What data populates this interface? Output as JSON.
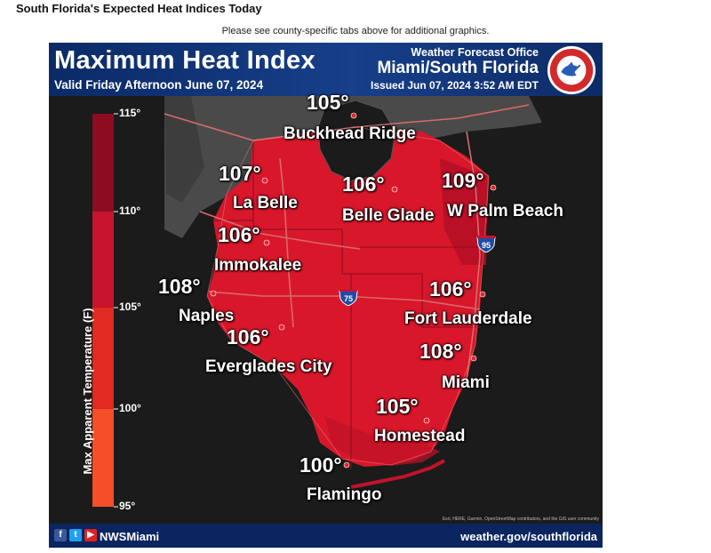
{
  "page": {
    "heading": "South Florida's Expected Heat Indices Today",
    "note": "Please see county-specific tabs above for additional graphics."
  },
  "graphic": {
    "title": "Maximum Heat Index",
    "valid": "Valid Friday Afternoon June 07, 2024",
    "office": "Weather Forecast Office",
    "region": "Miami/South Florida",
    "issued": "Issued Jun 07, 2024 3:52 AM EDT",
    "logo_icon": "nws-logo-icon"
  },
  "legend": {
    "axis_label": "Max Apparent Temperature (F)",
    "ticks": [
      "115°",
      "110°",
      "105°",
      "100°",
      "95°"
    ],
    "colors": [
      "#a8102c",
      "#c8142f",
      "#e02a22",
      "#f44f27"
    ]
  },
  "locations": [
    {
      "name": "Buckhead Ridge",
      "value": "105°",
      "heat_index": 105
    },
    {
      "name": "La Belle",
      "value": "107°",
      "heat_index": 107
    },
    {
      "name": "Belle Glade",
      "value": "106°",
      "heat_index": 106
    },
    {
      "name": "W Palm Beach",
      "value": "109°",
      "heat_index": 109
    },
    {
      "name": "Immokalee",
      "value": "106°",
      "heat_index": 106
    },
    {
      "name": "Naples",
      "value": "108°",
      "heat_index": 108
    },
    {
      "name": "Fort Lauderdale",
      "value": "106°",
      "heat_index": 106
    },
    {
      "name": "Everglades City",
      "value": "106°",
      "heat_index": 106
    },
    {
      "name": "Miami",
      "value": "108°",
      "heat_index": 108
    },
    {
      "name": "Homestead",
      "value": "105°",
      "heat_index": 105
    },
    {
      "name": "Flamingo",
      "value": "100°",
      "heat_index": 100
    }
  ],
  "highways": {
    "i75": "75",
    "i95": "95"
  },
  "footer": {
    "handle": "NWSMiami",
    "site": "weather.gov/southflorida",
    "credit": "Esri, HERE, Garmin, OpenStreetMap contributors, and the GIS user community"
  },
  "colors": {
    "land_gray": "#4a4a4a",
    "heat_red": "#d8172b",
    "heat_dark": "#b10f26",
    "water": "#1b1b1b",
    "header_blue": "#0b2a66"
  }
}
